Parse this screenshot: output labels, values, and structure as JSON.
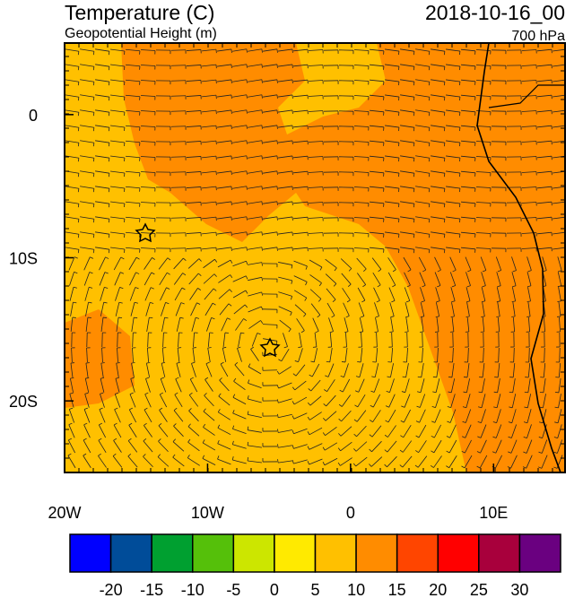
{
  "map": {
    "title": "Temperature (C)",
    "subtitle": "Geopotential Height (m)",
    "date": "2018-10-16_00",
    "level": "700 hPa",
    "xlim": [
      -20,
      15
    ],
    "ylim": [
      -25,
      5
    ],
    "xticks": [
      {
        "value": -20,
        "label": "20W"
      },
      {
        "value": -10,
        "label": "10W"
      },
      0,
      {
        "value": 10,
        "label": "10E"
      }
    ],
    "yticks": [
      0,
      {
        "value": -10,
        "label": "10S"
      },
      {
        "value": -20,
        "label": "20S"
      }
    ],
    "colorbar": {
      "colors": [
        "#0000ff",
        "#004c99",
        "#00a030",
        "#55c00a",
        "#cce600",
        "#ffea00",
        "#ffc000",
        "#ff8c00",
        "#ff4500",
        "#ff0000",
        "#a8003c",
        "#6a0080"
      ],
      "levels": [
        -20,
        -15,
        -10,
        -5,
        0,
        5,
        10,
        15,
        20,
        25,
        30
      ]
    }
  }
}
